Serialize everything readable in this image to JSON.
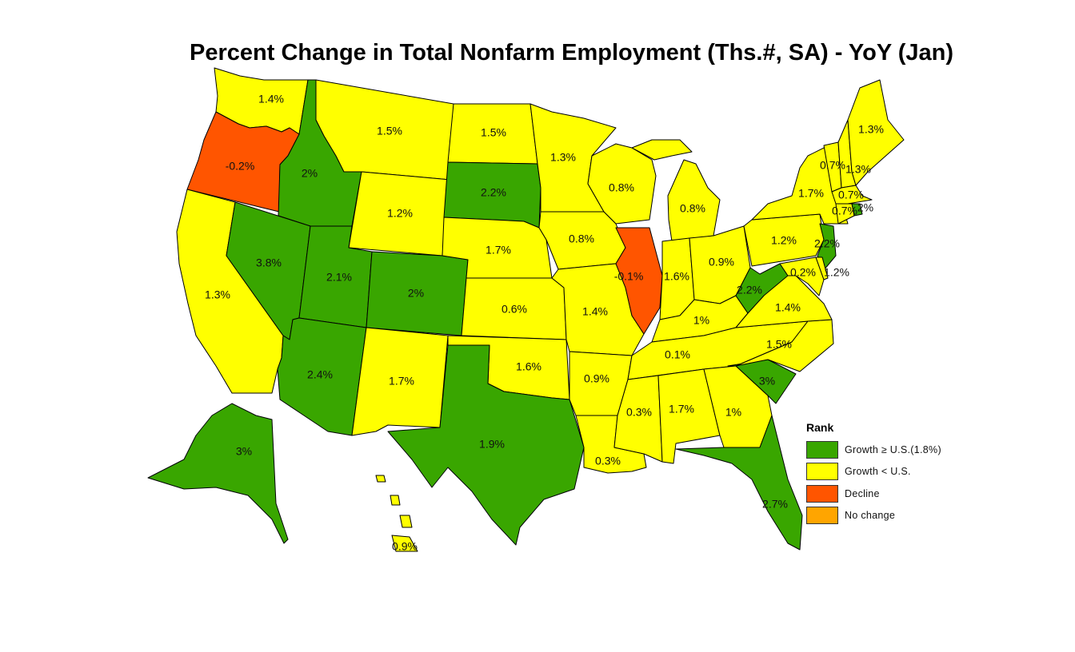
{
  "title": "Percent Change in Total Nonfarm Employment (Ths.#, SA) - YoY (Jan)",
  "colors": {
    "growth_ge_us": "#39a600",
    "growth_lt_us": "#ffff00",
    "decline": "#ff5500",
    "no_change": "#ffa500"
  },
  "legend": {
    "title": "Rank",
    "items": [
      {
        "label": "Growth ≥ U.S.(1.8%)",
        "category": "growth_ge_us"
      },
      {
        "label": "Growth < U.S.",
        "category": "growth_lt_us"
      },
      {
        "label": "Decline",
        "category": "decline"
      },
      {
        "label": "No change",
        "category": "no_change"
      }
    ]
  },
  "states": {
    "WA": {
      "label": "1.4%",
      "category": "growth_lt_us"
    },
    "OR": {
      "label": "-0.2%",
      "category": "decline"
    },
    "CA": {
      "label": "1.3%",
      "category": "growth_lt_us"
    },
    "ID": {
      "label": "2%",
      "category": "growth_ge_us"
    },
    "NV": {
      "label": "3.8%",
      "category": "growth_ge_us"
    },
    "MT": {
      "label": "1.5%",
      "category": "growth_lt_us"
    },
    "WY": {
      "label": "1.2%",
      "category": "growth_lt_us"
    },
    "UT": {
      "label": "2.1%",
      "category": "growth_ge_us"
    },
    "CO": {
      "label": "2%",
      "category": "growth_ge_us"
    },
    "AZ": {
      "label": "2.4%",
      "category": "growth_ge_us"
    },
    "NM": {
      "label": "1.7%",
      "category": "growth_lt_us"
    },
    "ND": {
      "label": "1.5%",
      "category": "growth_lt_us"
    },
    "SD": {
      "label": "2.2%",
      "category": "growth_ge_us"
    },
    "NE": {
      "label": "1.7%",
      "category": "growth_lt_us"
    },
    "KS": {
      "label": "0.6%",
      "category": "growth_lt_us"
    },
    "OK": {
      "label": "1.6%",
      "category": "growth_lt_us"
    },
    "TX": {
      "label": "1.9%",
      "category": "growth_ge_us"
    },
    "MN": {
      "label": "1.3%",
      "category": "growth_lt_us"
    },
    "IA": {
      "label": "0.8%",
      "category": "growth_lt_us"
    },
    "MO": {
      "label": "1.4%",
      "category": "growth_lt_us"
    },
    "AR": {
      "label": "0.9%",
      "category": "growth_lt_us"
    },
    "LA": {
      "label": "0.3%",
      "category": "growth_lt_us"
    },
    "WI": {
      "label": "0.8%",
      "category": "growth_lt_us"
    },
    "IL": {
      "label": "-0.1%",
      "category": "decline"
    },
    "MI": {
      "label": "0.8%",
      "category": "growth_lt_us"
    },
    "IN": {
      "label": "1.6%",
      "category": "growth_lt_us"
    },
    "OH": {
      "label": "0.9%",
      "category": "growth_lt_us"
    },
    "KY": {
      "label": "1%",
      "category": "growth_lt_us"
    },
    "TN": {
      "label": "0.1%",
      "category": "growth_lt_us"
    },
    "MS": {
      "label": "0.3%",
      "category": "growth_lt_us"
    },
    "AL": {
      "label": "1.7%",
      "category": "growth_lt_us"
    },
    "GA": {
      "label": "1%",
      "category": "growth_lt_us"
    },
    "FL": {
      "label": "2.7%",
      "category": "growth_ge_us"
    },
    "SC": {
      "label": "3%",
      "category": "growth_ge_us"
    },
    "NC": {
      "label": "1.5%",
      "category": "growth_lt_us"
    },
    "VA": {
      "label": "1.4%",
      "category": "growth_lt_us"
    },
    "WV": {
      "label": "2.2%",
      "category": "growth_ge_us"
    },
    "PA": {
      "label": "1.2%",
      "category": "growth_lt_us"
    },
    "NY": {
      "label": "1.7%",
      "category": "growth_lt_us"
    },
    "NJ": {
      "label": "2.2%",
      "category": "growth_ge_us"
    },
    "MD": {
      "label": "0.2%",
      "category": "growth_lt_us"
    },
    "DE": {
      "label": "1.2%",
      "category": "growth_lt_us"
    },
    "VT": {
      "label": "0.7%",
      "category": "growth_lt_us"
    },
    "NH": {
      "label": "1.3%",
      "category": "growth_lt_us"
    },
    "ME": {
      "label": "1.3%",
      "category": "growth_lt_us"
    },
    "MA": {
      "label": "0.7%",
      "category": "growth_lt_us"
    },
    "CT": {
      "label": "0.7%",
      "category": "growth_lt_us"
    },
    "RI": {
      "label": "2%",
      "category": "growth_ge_us"
    },
    "AK": {
      "label": "3%",
      "category": "growth_ge_us"
    },
    "HI": {
      "label": "0.9%",
      "category": "growth_lt_us"
    }
  }
}
